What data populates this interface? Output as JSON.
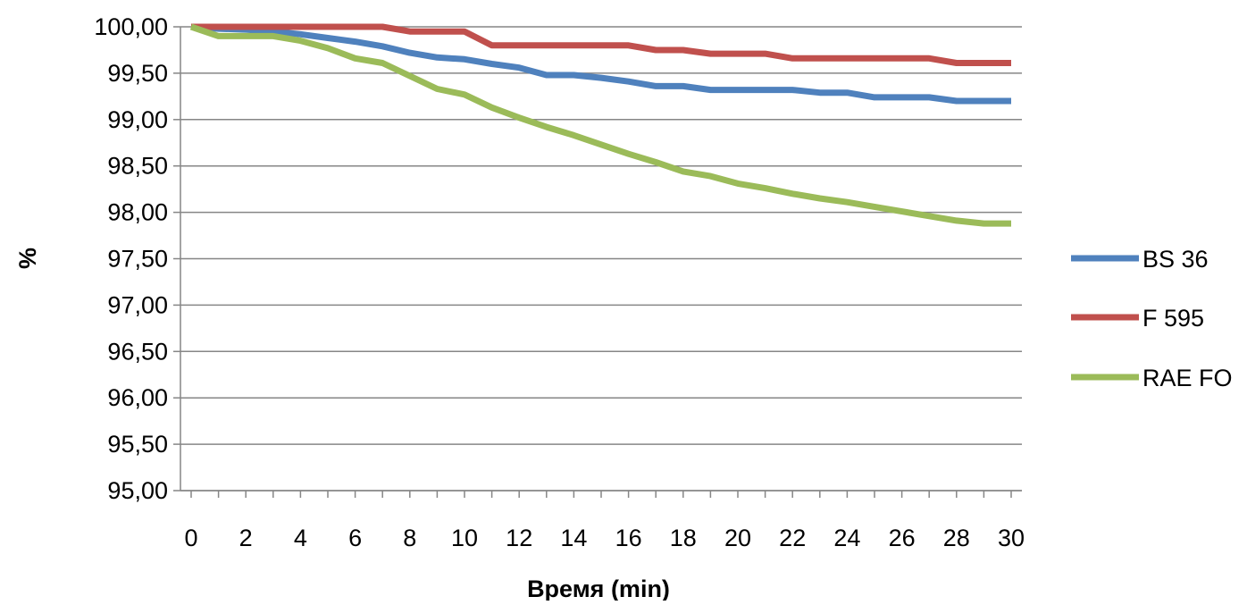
{
  "chart_data": {
    "type": "line",
    "title": "",
    "xlabel": "Время (min)",
    "ylabel": "%",
    "x": [
      0,
      1,
      2,
      3,
      4,
      5,
      6,
      7,
      8,
      9,
      10,
      11,
      12,
      13,
      14,
      15,
      16,
      17,
      18,
      19,
      20,
      21,
      22,
      23,
      24,
      25,
      26,
      27,
      28,
      29,
      30
    ],
    "xlim": [
      0,
      30
    ],
    "ylim": [
      95.0,
      100.0
    ],
    "x_ticks": [
      "0",
      "2",
      "4",
      "6",
      "8",
      "10",
      "12",
      "14",
      "16",
      "18",
      "20",
      "22",
      "24",
      "26",
      "28",
      "30"
    ],
    "y_ticks": [
      "95,00",
      "95,50",
      "96,00",
      "96,50",
      "97,00",
      "97,50",
      "98,00",
      "98,50",
      "99,00",
      "99,50",
      "100,00"
    ],
    "grid": "horizontal",
    "legend_position": "right",
    "series": [
      {
        "name": "BS 36",
        "color": "#4f81bd",
        "values": [
          100.0,
          99.98,
          99.97,
          99.95,
          99.92,
          99.88,
          99.84,
          99.79,
          99.72,
          99.67,
          99.65,
          99.6,
          99.56,
          99.48,
          99.48,
          99.45,
          99.41,
          99.36,
          99.36,
          99.32,
          99.32,
          99.32,
          99.32,
          99.29,
          99.29,
          99.24,
          99.24,
          99.24,
          99.2,
          99.2,
          99.2
        ]
      },
      {
        "name": "F 595",
        "color": "#c0504d",
        "values": [
          100.0,
          100.0,
          100.0,
          100.0,
          100.0,
          100.0,
          100.0,
          100.0,
          99.95,
          99.95,
          99.95,
          99.8,
          99.8,
          99.8,
          99.8,
          99.8,
          99.8,
          99.75,
          99.75,
          99.71,
          99.71,
          99.71,
          99.66,
          99.66,
          99.66,
          99.66,
          99.66,
          99.66,
          99.61,
          99.61,
          99.61
        ]
      },
      {
        "name": "RAE FO",
        "color": "#9bbb59",
        "values": [
          100.0,
          99.9,
          99.9,
          99.9,
          99.85,
          99.77,
          99.66,
          99.61,
          99.47,
          99.33,
          99.27,
          99.13,
          99.02,
          98.92,
          98.83,
          98.73,
          98.63,
          98.54,
          98.44,
          98.39,
          98.31,
          98.26,
          98.2,
          98.15,
          98.11,
          98.06,
          98.01,
          97.96,
          97.91,
          97.88,
          97.88
        ]
      }
    ]
  }
}
